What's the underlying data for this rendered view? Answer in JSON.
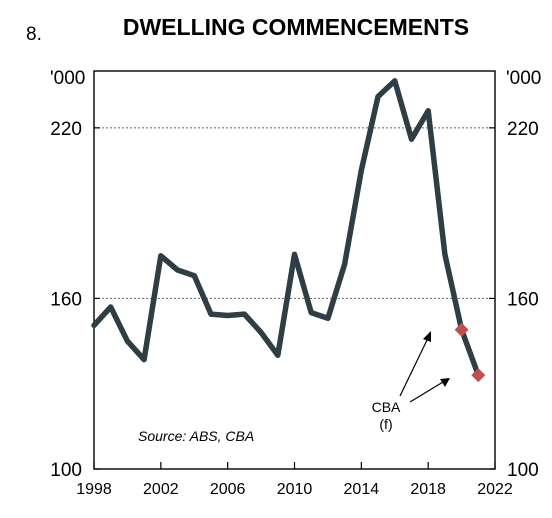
{
  "figure_number": "8.",
  "chart_data": {
    "type": "line",
    "title": "DWELLING COMMENCEMENTS",
    "unit_left": "'000",
    "unit_right": "'000",
    "ylim": [
      100,
      240
    ],
    "xlim": [
      1998,
      2022
    ],
    "y_ticks": [
      100,
      160,
      220
    ],
    "y_tick_labels": [
      "100",
      "160",
      "220"
    ],
    "x_ticks": [
      1998,
      2002,
      2006,
      2010,
      2014,
      2018,
      2022
    ],
    "x_tick_labels": [
      "1998",
      "2002",
      "2006",
      "2010",
      "2014",
      "2018",
      "2022"
    ],
    "gridlines": [
      160,
      220
    ],
    "grid": "dotted horizontal at 160 and 220",
    "series": [
      {
        "kind": "history",
        "color": "#2f3d45",
        "x": [
          1998,
          1999,
          2000,
          2001,
          2002,
          2003,
          2004,
          2005,
          2006,
          2007,
          2008,
          2009,
          2010,
          2011,
          2012,
          2013,
          2014,
          2015,
          2016,
          2017,
          2018,
          2019,
          2020
        ],
        "y": [
          150.5,
          157,
          145,
          138.5,
          175,
          170,
          168,
          154.5,
          154,
          154.5,
          148,
          140,
          175.5,
          155,
          153,
          172,
          205,
          231,
          236.5,
          216,
          226,
          175.5,
          149
        ]
      },
      {
        "kind": "forecast",
        "color": "#2f3d45",
        "x": [
          2020,
          2021
        ],
        "y": [
          149,
          133
        ]
      }
    ],
    "markers": {
      "color": "#c0504d",
      "shape": "diamond",
      "points": [
        {
          "x": 2020,
          "y": 149
        },
        {
          "x": 2021,
          "y": 133
        }
      ]
    },
    "annotations": {
      "source": "Source: ABS, CBA",
      "forecast_label_line1": "CBA",
      "forecast_label_line2": "(f)"
    }
  }
}
